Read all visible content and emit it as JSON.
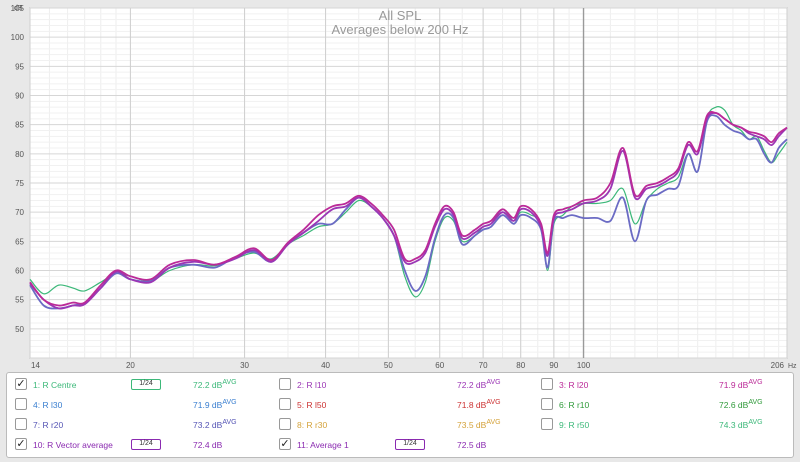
{
  "chart_data": {
    "type": "line",
    "title": "All SPL",
    "subtitle": "Averages below 200 Hz",
    "y_unit": "dB",
    "x_unit": "Hz",
    "xscale": "log",
    "xlim": [
      14,
      206
    ],
    "ylim": [
      45,
      105
    ],
    "y_ticks": [
      "50",
      "55",
      "60",
      "65",
      "70",
      "75",
      "80",
      "85",
      "90",
      "95",
      "100",
      "105"
    ],
    "x_ticks": [
      "14",
      "20",
      "30",
      "40",
      "50",
      "60",
      "70",
      "80",
      "90",
      "100",
      "206"
    ],
    "grid": true,
    "series": [
      {
        "id": "green",
        "color": "#3cb879",
        "x": [
          14,
          14.7,
          15.5,
          16.3,
          17,
          18,
          19,
          20,
          21.5,
          23,
          25,
          27,
          29,
          31,
          33,
          35,
          37,
          39,
          41,
          43,
          45,
          47,
          49,
          51,
          53,
          55,
          57,
          59,
          61,
          63,
          65,
          68,
          70,
          72,
          75,
          78,
          80,
          83,
          86,
          88,
          90,
          93,
          96,
          100,
          105,
          110,
          115,
          120,
          125,
          130,
          135,
          140,
          145,
          150,
          155,
          160,
          165,
          170,
          175,
          180,
          185,
          190,
          195,
          200,
          206
        ],
        "y": [
          58.5,
          56,
          57.5,
          57,
          56.5,
          58,
          59.5,
          59,
          58.2,
          60,
          61,
          60.8,
          62,
          63,
          62,
          64.5,
          66,
          67.5,
          68,
          70,
          72,
          71,
          69,
          66,
          59,
          55.5,
          58,
          65,
          69,
          68.5,
          65,
          66,
          67.5,
          68,
          70.5,
          68.5,
          70,
          69.5,
          68,
          60,
          68,
          69.5,
          71,
          71.5,
          71.5,
          72,
          74,
          68,
          72,
          74,
          75,
          76,
          80,
          77,
          86,
          88,
          87.5,
          85,
          84,
          82.5,
          83,
          80.5,
          78.5,
          80,
          82
        ]
      },
      {
        "id": "blue",
        "color": "#6b6bc4",
        "x": [
          14,
          14.7,
          15.5,
          16.3,
          17,
          18,
          19,
          20,
          21.5,
          23,
          25,
          27,
          29,
          31,
          33,
          35,
          37,
          39,
          41,
          43,
          45,
          47,
          49,
          51,
          53,
          55,
          57,
          59,
          61,
          63,
          65,
          68,
          70,
          72,
          75,
          78,
          80,
          83,
          86,
          88,
          90,
          93,
          96,
          100,
          105,
          110,
          115,
          120,
          125,
          130,
          135,
          140,
          145,
          150,
          155,
          160,
          165,
          170,
          175,
          180,
          185,
          190,
          195,
          200,
          206
        ],
        "y": [
          57.5,
          54,
          53.5,
          54,
          54.5,
          57,
          59.5,
          58.5,
          58.2,
          60.5,
          61,
          60.5,
          62.3,
          63.2,
          61.5,
          64.5,
          66.5,
          68,
          68,
          70.5,
          72.5,
          71,
          69,
          66,
          60,
          56.5,
          59,
          65.5,
          69.5,
          69,
          64.5,
          66,
          67,
          67.5,
          69.5,
          68,
          69.5,
          69,
          67,
          60.5,
          68.5,
          69,
          69.5,
          69,
          69,
          68.5,
          72.5,
          65,
          72,
          73,
          74,
          74.5,
          80,
          77,
          85.5,
          86.5,
          85,
          84,
          83.5,
          82.5,
          82.5,
          80,
          78.5,
          81,
          82.5
        ]
      },
      {
        "id": "purple",
        "color": "#9b36b5",
        "x": [
          14,
          14.7,
          15.5,
          16.3,
          17,
          18,
          19,
          20,
          21.5,
          23,
          25,
          27,
          29,
          31,
          33,
          35,
          37,
          39,
          41,
          43,
          45,
          47,
          49,
          51,
          53,
          55,
          57,
          59,
          61,
          63,
          65,
          68,
          70,
          72,
          75,
          78,
          80,
          83,
          86,
          88,
          90,
          93,
          96,
          100,
          105,
          110,
          115,
          120,
          125,
          130,
          135,
          140,
          145,
          150,
          155,
          160,
          165,
          170,
          175,
          180,
          185,
          190,
          195,
          200,
          206
        ],
        "y": [
          57.8,
          55,
          53.5,
          54,
          54.2,
          57,
          59.8,
          58.5,
          58,
          60.5,
          61.5,
          61,
          62,
          63.5,
          61.5,
          64.5,
          66.5,
          68.5,
          70.5,
          71,
          72.5,
          71,
          69,
          66,
          61.5,
          61.5,
          63,
          67.5,
          70.5,
          69.5,
          65.5,
          66.5,
          67.5,
          68,
          70,
          68.5,
          70.5,
          70,
          67.5,
          62.5,
          69,
          70,
          70.5,
          71.5,
          72,
          74,
          80.5,
          72.5,
          74,
          74.5,
          75.5,
          77,
          81.5,
          80,
          86,
          87,
          86,
          85,
          84.5,
          83.5,
          83,
          82.5,
          81.5,
          83,
          84.5
        ]
      },
      {
        "id": "magenta",
        "color": "#bb2a98",
        "x": [
          14,
          14.7,
          15.5,
          16.3,
          17,
          18,
          19,
          20,
          21.5,
          23,
          25,
          27,
          29,
          31,
          33,
          35,
          37,
          39,
          41,
          43,
          45,
          47,
          49,
          51,
          53,
          55,
          57,
          59,
          61,
          63,
          65,
          68,
          70,
          72,
          75,
          78,
          80,
          83,
          86,
          88,
          90,
          93,
          96,
          100,
          105,
          110,
          115,
          120,
          125,
          130,
          135,
          140,
          145,
          150,
          155,
          160,
          165,
          170,
          175,
          180,
          185,
          190,
          195,
          200,
          206
        ],
        "y": [
          58,
          55,
          54,
          54.5,
          54.5,
          57.5,
          60,
          59,
          58.5,
          61,
          61.8,
          61,
          62.3,
          63.8,
          61.8,
          64.8,
          67,
          69.5,
          71,
          71.5,
          72.8,
          71.5,
          69.5,
          67,
          62,
          62,
          63.5,
          68,
          71,
          70,
          66,
          67,
          68,
          68.5,
          70.5,
          69,
          71,
          70.5,
          68,
          63,
          69.5,
          70.5,
          71,
          72,
          72.5,
          75,
          81,
          73,
          74.5,
          75,
          76,
          77.5,
          82,
          80.5,
          86.5,
          87,
          86,
          85,
          84.5,
          83.8,
          83.5,
          83,
          82,
          83.5,
          84.5
        ]
      }
    ]
  },
  "legend": {
    "rows": [
      [
        {
          "checked": true,
          "label": "1: R Centre",
          "color": "#3cb879",
          "smooth": "1/24",
          "avg": "72.2 dB",
          "avg_sup": "AVG",
          "avg_color": "#3cb879"
        },
        {
          "checked": false,
          "label": "2: R l10",
          "color": "#9b36b5",
          "avg": "72.2 dB",
          "avg_sup": "AVG",
          "avg_color": "#9b36b5"
        },
        {
          "checked": false,
          "label": "3: R l20",
          "color": "#bb2a98",
          "avg": "71.9 dB",
          "avg_sup": "AVG",
          "avg_color": "#bb2a98"
        }
      ],
      [
        {
          "checked": false,
          "label": "4: R l30",
          "color": "#3a7fd0",
          "avg": "71.9 dB",
          "avg_sup": "AVG",
          "avg_color": "#3a7fd0"
        },
        {
          "checked": false,
          "label": "5: R l50",
          "color": "#cc3333",
          "avg": "71.8 dB",
          "avg_sup": "AVG",
          "avg_color": "#cc3333"
        },
        {
          "checked": false,
          "label": "6: R r10",
          "color": "#2f9a3a",
          "avg": "72.6 dB",
          "avg_sup": "AVG",
          "avg_color": "#2f9a3a"
        }
      ],
      [
        {
          "checked": false,
          "label": "7: R r20",
          "color": "#5555b5",
          "avg": "73.2 dB",
          "avg_sup": "AVG",
          "avg_color": "#5555b5"
        },
        {
          "checked": false,
          "label": "8: R r30",
          "color": "#d4a23a",
          "avg": "73.5 dB",
          "avg_sup": "AVG",
          "avg_color": "#d4a23a"
        },
        {
          "checked": false,
          "label": "9: R r50",
          "color": "#3cb879",
          "avg": "74.3 dB",
          "avg_sup": "AVG",
          "avg_color": "#3cb879"
        }
      ],
      [
        {
          "checked": true,
          "label": "10: R Vector average",
          "color": "#8a2ab0",
          "smooth": "1/24",
          "avg": "72.4 dB",
          "avg_color": "#8a2ab0"
        },
        {
          "checked": true,
          "label": "11: Average 1",
          "color": "#8a2ab0",
          "smooth": "1/24",
          "avg": "72.5 dB",
          "avg_color": "#8a2ab0"
        }
      ]
    ]
  }
}
